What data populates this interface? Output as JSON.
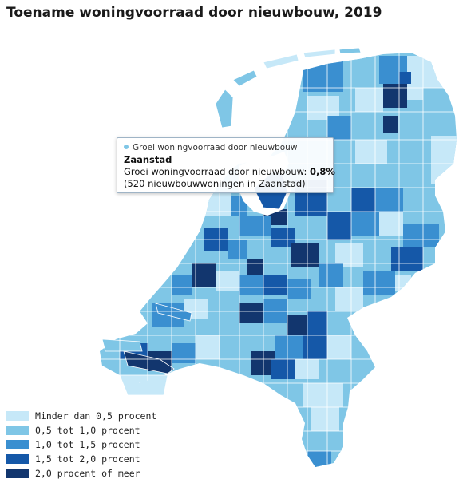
{
  "title": "Toename woningvoorraad door nieuwbouw, 2019",
  "tooltip": {
    "series_label": "Groei woningvoorraad door nieuwbouw",
    "region": "Zaanstad",
    "value_label": "Groei woningvoorraad door nieuwbouw:",
    "value": "0,8%",
    "note": "(520 nieuwbouwwoningen in Zaanstad)"
  },
  "legend": [
    {
      "label": "Minder dan 0,5 procent",
      "color": "#c6e8f8"
    },
    {
      "label": "0,5 tot 1,0 procent",
      "color": "#7fc6e6"
    },
    {
      "label": "1,0 tot 1,5 procent",
      "color": "#3a8fd0"
    },
    {
      "label": "1,5 tot 2,0 procent",
      "color": "#1558a8"
    },
    {
      "label": "2,0 procent of meer",
      "color": "#12366e"
    }
  ]
}
